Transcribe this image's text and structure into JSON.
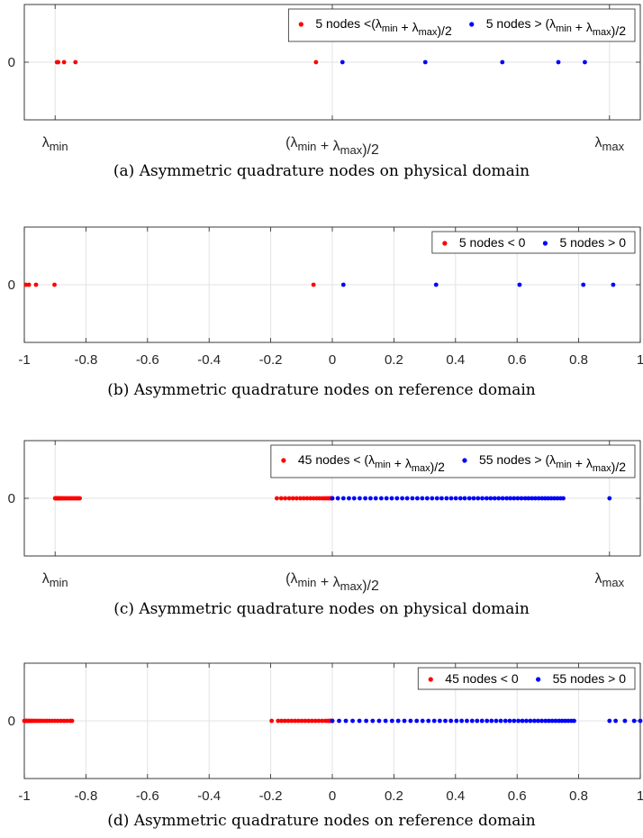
{
  "chart_data": [
    {
      "type": "scatter",
      "title": "",
      "caption": "(a) Asymmetric quadrature nodes on physical domain",
      "xlim": [
        -1,
        1
      ],
      "ylim": [
        -1,
        1
      ],
      "grid": true,
      "y_ticks": [
        "0"
      ],
      "x_ticks": [
        {
          "x": -0.9,
          "base": "λ",
          "sub": "min",
          "prefix": "",
          "suffix": ""
        },
        {
          "x": 0.0,
          "base": "(λ",
          "sub": "min",
          "mid": " + λ",
          "sub2": "max",
          "suffix": ")/2"
        },
        {
          "x": 0.9,
          "base": "λ",
          "sub": "max",
          "prefix": "",
          "suffix": ""
        }
      ],
      "legend_position": "top-right",
      "series": [
        {
          "name": "5 nodes <(λmin + λmax)/2",
          "legend_text": [
            {
              "t": "5 nodes <("
            },
            {
              "t": "λ"
            },
            {
              "t": "min",
              "sub": true
            },
            {
              "t": " + "
            },
            {
              "t": "λ"
            },
            {
              "t": "max",
              "sub": true
            },
            {
              "t": ")/2"
            }
          ],
          "color": "#ff0000",
          "x": [
            -0.894,
            -0.89,
            -0.871,
            -0.834,
            -0.053
          ],
          "y": [
            0,
            0,
            0,
            0,
            0
          ]
        },
        {
          "name": "5 nodes > (λmin + λmax)/2",
          "legend_text": [
            {
              "t": "5 nodes > ("
            },
            {
              "t": "λ"
            },
            {
              "t": "min",
              "sub": true
            },
            {
              "t": " + "
            },
            {
              "t": "λ"
            },
            {
              "t": "max",
              "sub": true
            },
            {
              "t": ")/2"
            }
          ],
          "color": "#0000ff",
          "x": [
            0.033,
            0.302,
            0.552,
            0.734,
            0.82
          ],
          "y": [
            0,
            0,
            0,
            0,
            0
          ]
        }
      ]
    },
    {
      "type": "scatter",
      "title": "",
      "caption": "(b)  Asymmetric quadrature nodes on reference domain",
      "xlim": [
        -1,
        1
      ],
      "ylim": [
        -1,
        1
      ],
      "grid": true,
      "y_ticks": [
        "0"
      ],
      "x_ticks": [
        {
          "x": -1,
          "label": "-1"
        },
        {
          "x": -0.8,
          "label": "-0.8"
        },
        {
          "x": -0.6,
          "label": "-0.6"
        },
        {
          "x": -0.4,
          "label": "-0.4"
        },
        {
          "x": -0.2,
          "label": "-0.2"
        },
        {
          "x": 0,
          "label": "0"
        },
        {
          "x": 0.2,
          "label": "0.2"
        },
        {
          "x": 0.4,
          "label": "0.4"
        },
        {
          "x": 0.6,
          "label": "0.6"
        },
        {
          "x": 0.8,
          "label": "0.8"
        },
        {
          "x": 1,
          "label": "1"
        }
      ],
      "legend_position": "top-right",
      "series": [
        {
          "name": "5 nodes < 0",
          "legend_text": [
            {
              "t": "5 nodes < 0"
            }
          ],
          "color": "#ff0000",
          "x": [
            -0.995,
            -0.985,
            -0.962,
            -0.902,
            -0.061
          ],
          "y": [
            0,
            0,
            0,
            0,
            0
          ]
        },
        {
          "name": "5 nodes > 0",
          "legend_text": [
            {
              "t": "5 nodes > 0"
            }
          ],
          "color": "#0000ff",
          "x": [
            0.036,
            0.337,
            0.608,
            0.815,
            0.912
          ],
          "y": [
            0,
            0,
            0,
            0,
            0
          ]
        }
      ]
    },
    {
      "type": "scatter",
      "title": "",
      "caption": "(c)  Asymmetric quadrature nodes on physical domain",
      "xlim": [
        -1,
        1
      ],
      "ylim": [
        -1,
        1
      ],
      "grid": true,
      "y_ticks": [
        "0"
      ],
      "x_ticks": [
        {
          "x": -0.9,
          "base": "λ",
          "sub": "min",
          "prefix": "",
          "suffix": ""
        },
        {
          "x": 0.0,
          "base": "(λ",
          "sub": "min",
          "mid": " + λ",
          "sub2": "max",
          "suffix": ")/2"
        },
        {
          "x": 0.9,
          "base": "λ",
          "sub": "max",
          "prefix": "",
          "suffix": ""
        }
      ],
      "legend_position": "top-right",
      "series": [
        {
          "name": "45 nodes < (λmin + λmax)/2",
          "legend_text": [
            {
              "t": "45 nodes < ("
            },
            {
              "t": "λ"
            },
            {
              "t": "min",
              "sub": true
            },
            {
              "t": " + "
            },
            {
              "t": "λ"
            },
            {
              "t": "max",
              "sub": true
            },
            {
              "t": ")/2"
            }
          ],
          "color": "#ff0000",
          "x": [
            -0.9,
            -0.899,
            -0.898,
            -0.897,
            -0.895,
            -0.893,
            -0.891,
            -0.888,
            -0.885,
            -0.882,
            -0.879,
            -0.875,
            -0.871,
            -0.867,
            -0.862,
            -0.858,
            -0.853,
            -0.848,
            -0.843,
            -0.838,
            -0.833,
            -0.829,
            -0.824,
            -0.82,
            -0.18,
            -0.166,
            -0.153,
            -0.14,
            -0.128,
            -0.116,
            -0.104,
            -0.093,
            -0.082,
            -0.071,
            -0.061,
            -0.051,
            -0.042,
            -0.033,
            -0.025,
            -0.018,
            -0.012,
            -0.007,
            -0.003,
            -0.001,
            0.0
          ],
          "y": [
            0,
            0,
            0,
            0,
            0,
            0,
            0,
            0,
            0,
            0,
            0,
            0,
            0,
            0,
            0,
            0,
            0,
            0,
            0,
            0,
            0,
            0,
            0,
            0,
            0,
            0,
            0,
            0,
            0,
            0,
            0,
            0,
            0,
            0,
            0,
            0,
            0,
            0,
            0,
            0,
            0,
            0,
            0,
            0,
            0
          ]
        },
        {
          "name": "55 nodes > (λmin + λmax)/2",
          "legend_text": [
            {
              "t": "55 nodes > ("
            },
            {
              "t": "λ"
            },
            {
              "t": "min",
              "sub": true
            },
            {
              "t": " + "
            },
            {
              "t": "λ"
            },
            {
              "t": "max",
              "sub": true
            },
            {
              "t": ")/2"
            }
          ],
          "color": "#0000ff",
          "x": [
            0.0,
            0.018,
            0.036,
            0.054,
            0.071,
            0.089,
            0.107,
            0.124,
            0.141,
            0.159,
            0.176,
            0.193,
            0.21,
            0.227,
            0.243,
            0.26,
            0.276,
            0.292,
            0.308,
            0.324,
            0.34,
            0.355,
            0.371,
            0.386,
            0.401,
            0.416,
            0.43,
            0.445,
            0.459,
            0.473,
            0.487,
            0.501,
            0.514,
            0.527,
            0.54,
            0.553,
            0.566,
            0.578,
            0.59,
            0.602,
            0.614,
            0.626,
            0.637,
            0.648,
            0.659,
            0.67,
            0.681,
            0.691,
            0.701,
            0.711,
            0.721,
            0.731,
            0.741,
            0.75,
            0.9
          ],
          "y": [
            0,
            0,
            0,
            0,
            0,
            0,
            0,
            0,
            0,
            0,
            0,
            0,
            0,
            0,
            0,
            0,
            0,
            0,
            0,
            0,
            0,
            0,
            0,
            0,
            0,
            0,
            0,
            0,
            0,
            0,
            0,
            0,
            0,
            0,
            0,
            0,
            0,
            0,
            0,
            0,
            0,
            0,
            0,
            0,
            0,
            0,
            0,
            0,
            0,
            0,
            0,
            0,
            0,
            0,
            0
          ]
        }
      ]
    },
    {
      "type": "scatter",
      "title": "",
      "caption": "(d) Asymmetric quadrature nodes on reference domain",
      "xlim": [
        -1,
        1
      ],
      "ylim": [
        -1,
        1
      ],
      "grid": true,
      "y_ticks": [
        "0"
      ],
      "x_ticks": [
        {
          "x": -1,
          "label": "-1"
        },
        {
          "x": -0.8,
          "label": "-0.8"
        },
        {
          "x": -0.6,
          "label": "-0.6"
        },
        {
          "x": -0.4,
          "label": "-0.4"
        },
        {
          "x": -0.2,
          "label": "-0.2"
        },
        {
          "x": 0,
          "label": "0"
        },
        {
          "x": 0.2,
          "label": "0.2"
        },
        {
          "x": 0.4,
          "label": "0.4"
        },
        {
          "x": 0.6,
          "label": "0.6"
        },
        {
          "x": 0.8,
          "label": "0.8"
        },
        {
          "x": 1,
          "label": "1"
        }
      ],
      "legend_position": "top-right",
      "series": [
        {
          "name": "45 nodes < 0",
          "legend_text": [
            {
              "t": "45 nodes < 0"
            }
          ],
          "color": "#ff0000",
          "x": [
            -1.0,
            -0.998,
            -0.995,
            -0.992,
            -0.988,
            -0.984,
            -0.979,
            -0.974,
            -0.968,
            -0.962,
            -0.956,
            -0.949,
            -0.942,
            -0.934,
            -0.926,
            -0.918,
            -0.909,
            -0.9,
            -0.891,
            -0.881,
            -0.871,
            -0.861,
            -0.851,
            -0.845,
            -0.197,
            -0.176,
            -0.165,
            -0.154,
            -0.143,
            -0.132,
            -0.121,
            -0.11,
            -0.099,
            -0.088,
            -0.077,
            -0.066,
            -0.055,
            -0.044,
            -0.033,
            -0.022,
            -0.014,
            -0.008,
            -0.004,
            -0.001,
            0.0
          ],
          "y": [
            0,
            0,
            0,
            0,
            0,
            0,
            0,
            0,
            0,
            0,
            0,
            0,
            0,
            0,
            0,
            0,
            0,
            0,
            0,
            0,
            0,
            0,
            0,
            0,
            0,
            0,
            0,
            0,
            0,
            0,
            0,
            0,
            0,
            0,
            0,
            0,
            0,
            0,
            0,
            0,
            0,
            0,
            0,
            0,
            0
          ]
        },
        {
          "name": "55 nodes > 0",
          "legend_text": [
            {
              "t": "55 nodes > 0"
            }
          ],
          "color": "#0000ff",
          "x": [
            0.0,
            0.022,
            0.044,
            0.066,
            0.088,
            0.11,
            0.131,
            0.152,
            0.173,
            0.194,
            0.214,
            0.234,
            0.254,
            0.274,
            0.293,
            0.312,
            0.331,
            0.349,
            0.367,
            0.385,
            0.403,
            0.42,
            0.437,
            0.454,
            0.47,
            0.486,
            0.502,
            0.517,
            0.532,
            0.547,
            0.562,
            0.576,
            0.59,
            0.604,
            0.617,
            0.63,
            0.643,
            0.656,
            0.668,
            0.68,
            0.692,
            0.703,
            0.714,
            0.725,
            0.736,
            0.746,
            0.756,
            0.766,
            0.776,
            0.785,
            0.9,
            0.92,
            0.95,
            0.98,
            1.0
          ],
          "y": [
            0,
            0,
            0,
            0,
            0,
            0,
            0,
            0,
            0,
            0,
            0,
            0,
            0,
            0,
            0,
            0,
            0,
            0,
            0,
            0,
            0,
            0,
            0,
            0,
            0,
            0,
            0,
            0,
            0,
            0,
            0,
            0,
            0,
            0,
            0,
            0,
            0,
            0,
            0,
            0,
            0,
            0,
            0,
            0,
            0,
            0,
            0,
            0,
            0,
            0,
            0,
            0,
            0,
            0,
            0
          ]
        }
      ]
    }
  ]
}
